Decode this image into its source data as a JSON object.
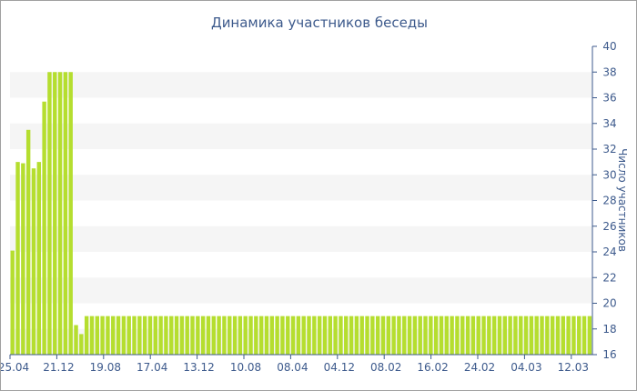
{
  "chart_data": {
    "type": "bar",
    "title": "Динамика участников беседы",
    "ylabel": "Число участников",
    "xlabel": "",
    "ylim": [
      16,
      40
    ],
    "y_ticks": [
      16,
      18,
      20,
      22,
      24,
      26,
      28,
      30,
      32,
      34,
      36,
      38,
      40
    ],
    "x_tick_labels": [
      "25.04",
      "21.12",
      "19.08",
      "17.04",
      "13.12",
      "10.08",
      "08.04",
      "04.12",
      "08.02",
      "16.02",
      "24.02",
      "04.03",
      "12.03"
    ],
    "y_axis_position": "right",
    "grid": "alternating horizontal bands",
    "bar_color": "#b5de2f",
    "values": [
      24.1,
      31,
      30.9,
      33.5,
      30.5,
      31,
      35.7,
      38,
      38,
      38,
      38,
      38,
      18.3,
      17.6,
      19,
      19,
      19,
      19,
      19,
      19,
      19,
      19,
      19,
      19,
      19,
      19,
      19,
      19,
      19,
      19,
      19,
      19,
      19,
      19,
      19,
      19,
      19,
      19,
      19,
      19,
      19,
      19,
      19,
      19,
      19,
      19,
      19,
      19,
      19,
      19,
      19,
      19,
      19,
      19,
      19,
      19,
      19,
      19,
      19,
      19,
      19,
      19,
      19,
      19,
      19,
      19,
      19,
      19,
      19,
      19,
      19,
      19,
      19,
      19,
      19,
      19,
      19,
      19,
      19,
      19,
      19,
      19,
      19,
      19,
      19,
      19,
      19,
      19,
      19,
      19,
      19,
      19,
      19,
      19,
      19,
      19,
      19,
      19,
      19,
      19,
      19,
      19,
      19,
      19,
      19,
      19,
      19,
      19,
      19,
      19
    ]
  }
}
